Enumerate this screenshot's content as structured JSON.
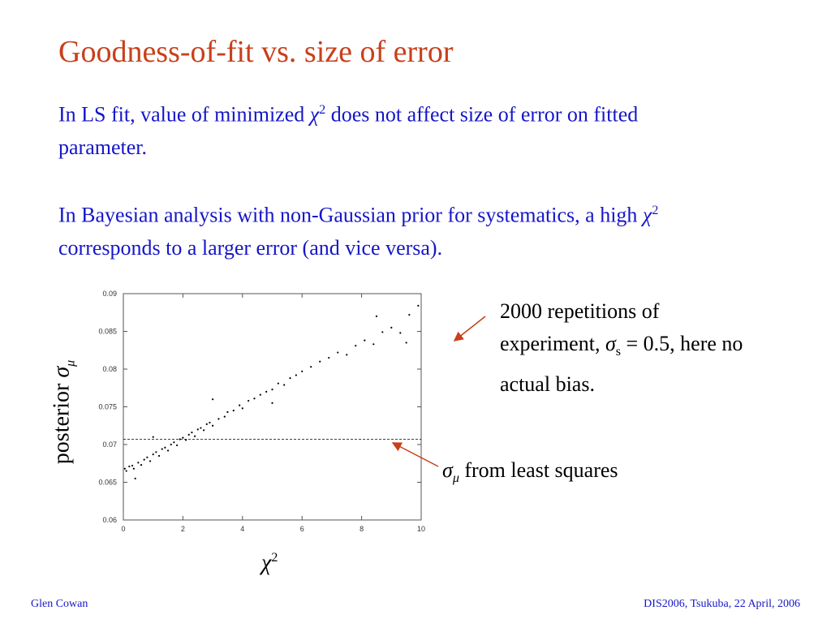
{
  "title": "Goodness-of-fit vs. size of error",
  "paragraphs": [
    [
      "In LS fit, value of minimized ",
      "χ",
      "2",
      " does not affect size of error on fitted parameter."
    ],
    [
      "In Bayesian analysis with non-Gaussian prior for systematics, a high ",
      "χ",
      "2",
      " corresponds to a larger error (and vice versa)."
    ]
  ],
  "annotations": {
    "repetitions": [
      "2000 repetitions of experiment, ",
      "σ",
      "s",
      " = 0.5, here no actual bias."
    ],
    "least_squares": [
      "σ",
      "μ",
      " from least squares"
    ]
  },
  "chart_data": {
    "type": "scatter",
    "x_label": [
      "χ",
      "2"
    ],
    "y_label": [
      "posterior ",
      "σ",
      "μ"
    ],
    "color": "#000000",
    "hline": 0.0707,
    "xlim": [
      0,
      10
    ],
    "ylim": [
      0.06,
      0.09
    ],
    "xticks": [
      0,
      2,
      4,
      6,
      8,
      10
    ],
    "yticks": [
      0.06,
      0.065,
      0.07,
      0.075,
      0.08,
      0.085,
      0.09
    ],
    "x": [
      0.05,
      0.1,
      0.2,
      0.3,
      0.35,
      0.5,
      0.6,
      0.7,
      0.8,
      0.9,
      1.0,
      1.1,
      1.2,
      1.3,
      1.4,
      1.5,
      1.6,
      1.7,
      1.8,
      1.9,
      2.0,
      2.1,
      2.2,
      2.3,
      2.4,
      2.5,
      2.6,
      2.7,
      2.8,
      2.9,
      3.0,
      3.2,
      3.4,
      3.5,
      3.7,
      3.9,
      4.0,
      4.2,
      4.4,
      4.6,
      4.8,
      5.0,
      5.2,
      5.4,
      5.6,
      5.8,
      6.0,
      6.3,
      6.6,
      6.9,
      7.2,
      7.5,
      7.8,
      8.1,
      8.4,
      8.7,
      9.0,
      9.3,
      9.6,
      9.9,
      0.4,
      1.0,
      3.0,
      5.0,
      8.5,
      9.5
    ],
    "y": [
      0.0668,
      0.0665,
      0.0671,
      0.0672,
      0.0668,
      0.0676,
      0.0673,
      0.068,
      0.0683,
      0.0678,
      0.0687,
      0.069,
      0.0685,
      0.0694,
      0.0696,
      0.0692,
      0.07,
      0.0703,
      0.0699,
      0.0707,
      0.0709,
      0.0706,
      0.0713,
      0.0716,
      0.0711,
      0.072,
      0.0722,
      0.0719,
      0.0727,
      0.0729,
      0.0725,
      0.0734,
      0.0737,
      0.0743,
      0.0745,
      0.0752,
      0.0748,
      0.0758,
      0.0761,
      0.0766,
      0.077,
      0.0773,
      0.0781,
      0.0779,
      0.0788,
      0.0792,
      0.0797,
      0.0803,
      0.081,
      0.0815,
      0.0822,
      0.0819,
      0.0831,
      0.0838,
      0.0833,
      0.0849,
      0.0855,
      0.0848,
      0.0872,
      0.0884,
      0.0655,
      0.071,
      0.076,
      0.0755,
      0.087,
      0.0835
    ]
  },
  "footer": {
    "left": "Glen Cowan",
    "right": "DIS2006, Tsukuba, 22 April, 2006"
  }
}
